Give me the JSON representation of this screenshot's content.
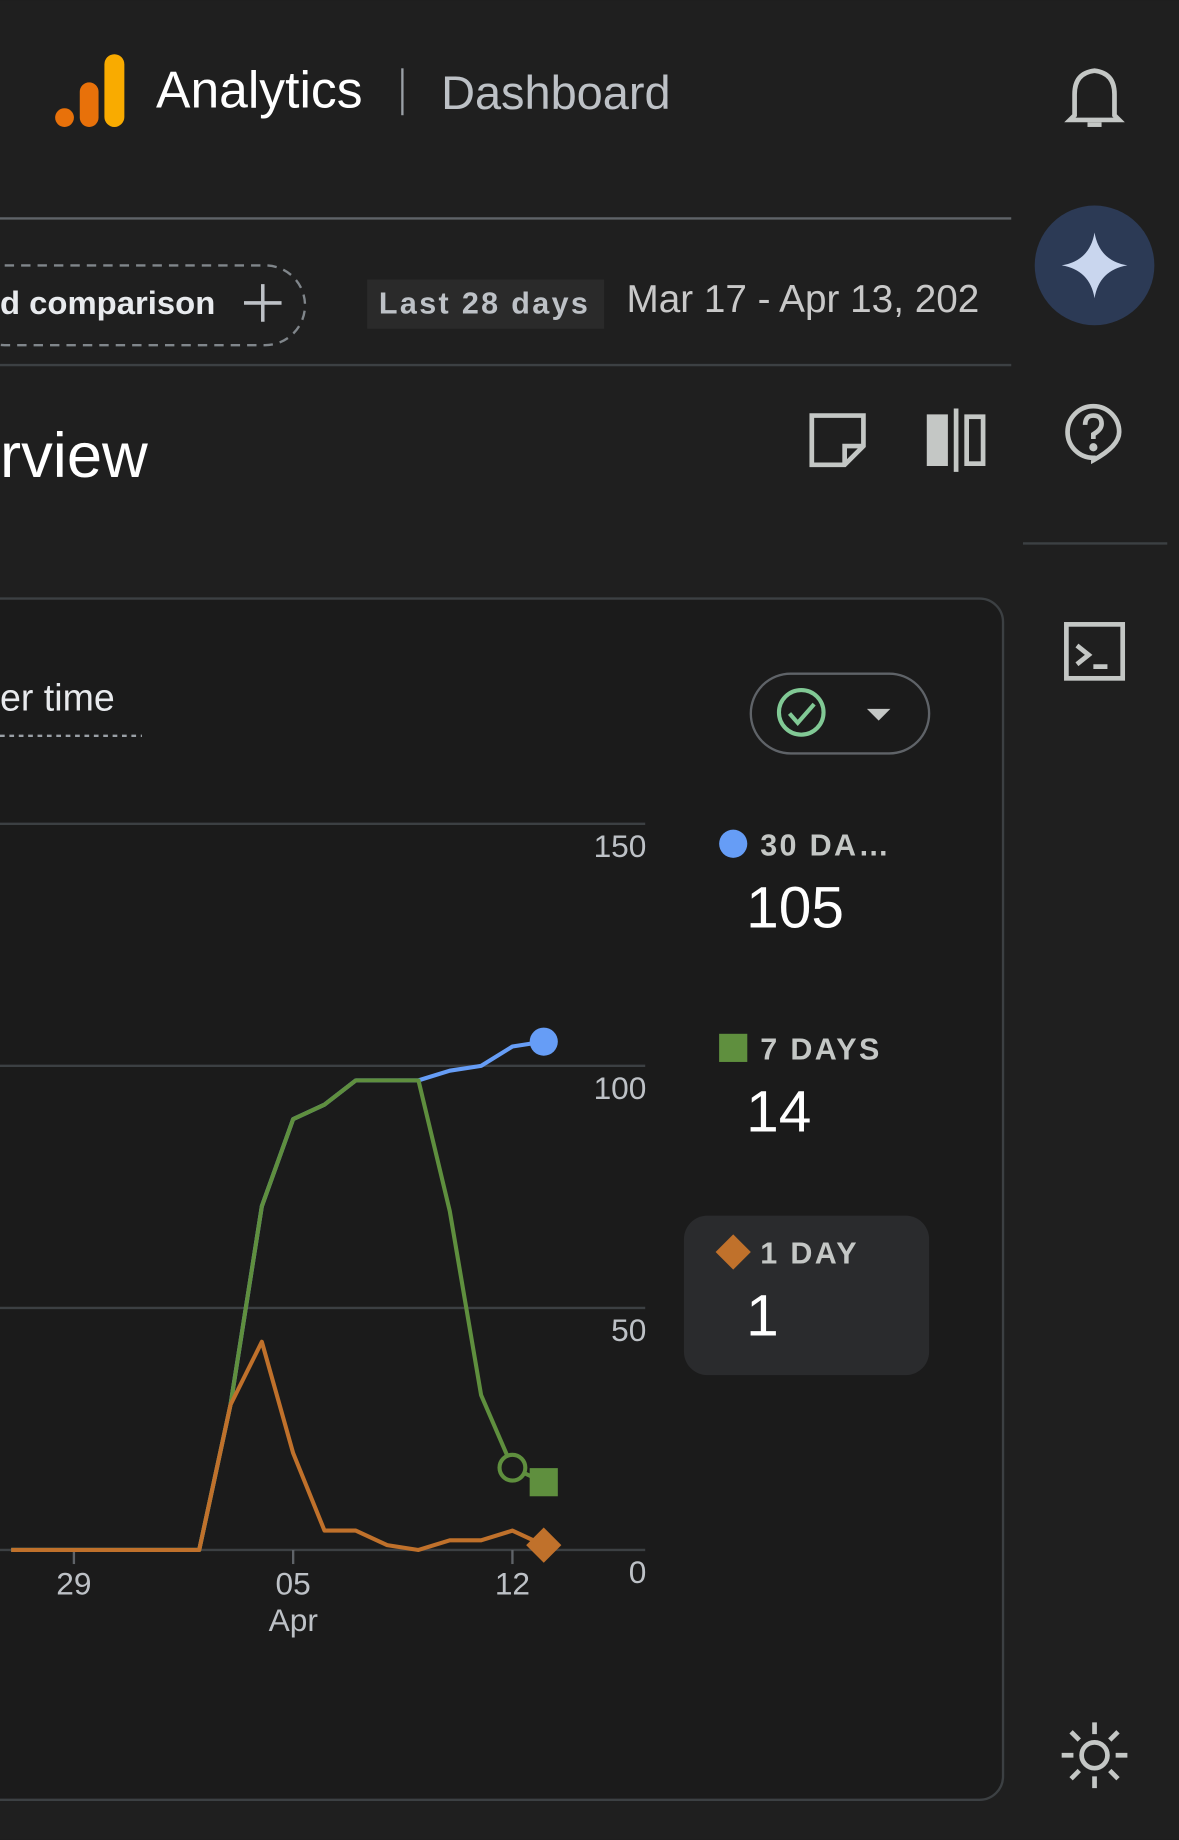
{
  "ui": {
    "app_name": "Analytics",
    "page_name": "Dashboard",
    "comparison_chip": "d comparison",
    "date_preset": "Last 28 days",
    "date_range": "Mar 17 - Apr 13, 202",
    "section_title": "rview",
    "card_title": "er time"
  },
  "chart_data": {
    "type": "line",
    "categories": [
      null,
      null,
      "29",
      null,
      null,
      null,
      null,
      null,
      null,
      "05",
      null,
      null,
      null,
      null,
      null,
      null,
      "12",
      null
    ],
    "x_month_label": "Apr",
    "series": [
      {
        "name": "30 DA…",
        "color": "#669df6",
        "marker": "circle",
        "values": [
          0,
          0,
          0,
          0,
          0,
          0,
          0,
          30,
          71,
          89,
          92,
          97,
          97,
          97,
          99,
          100,
          104,
          105
        ]
      },
      {
        "name": "7 DAYS",
        "color": "#5f8f3e",
        "marker": "square",
        "values": [
          0,
          0,
          0,
          0,
          0,
          0,
          0,
          30,
          71,
          89,
          92,
          97,
          97,
          97,
          70,
          32,
          17,
          14
        ]
      },
      {
        "name": "1 DAY",
        "color": "#c0712b",
        "marker": "diamond",
        "values": [
          0,
          0,
          0,
          0,
          0,
          0,
          0,
          30,
          43,
          20,
          4,
          4,
          1,
          0,
          2,
          2,
          4,
          1
        ]
      }
    ],
    "ylim": [
      0,
      150
    ],
    "yticks": [
      0,
      50,
      100,
      150
    ],
    "grid": true
  }
}
